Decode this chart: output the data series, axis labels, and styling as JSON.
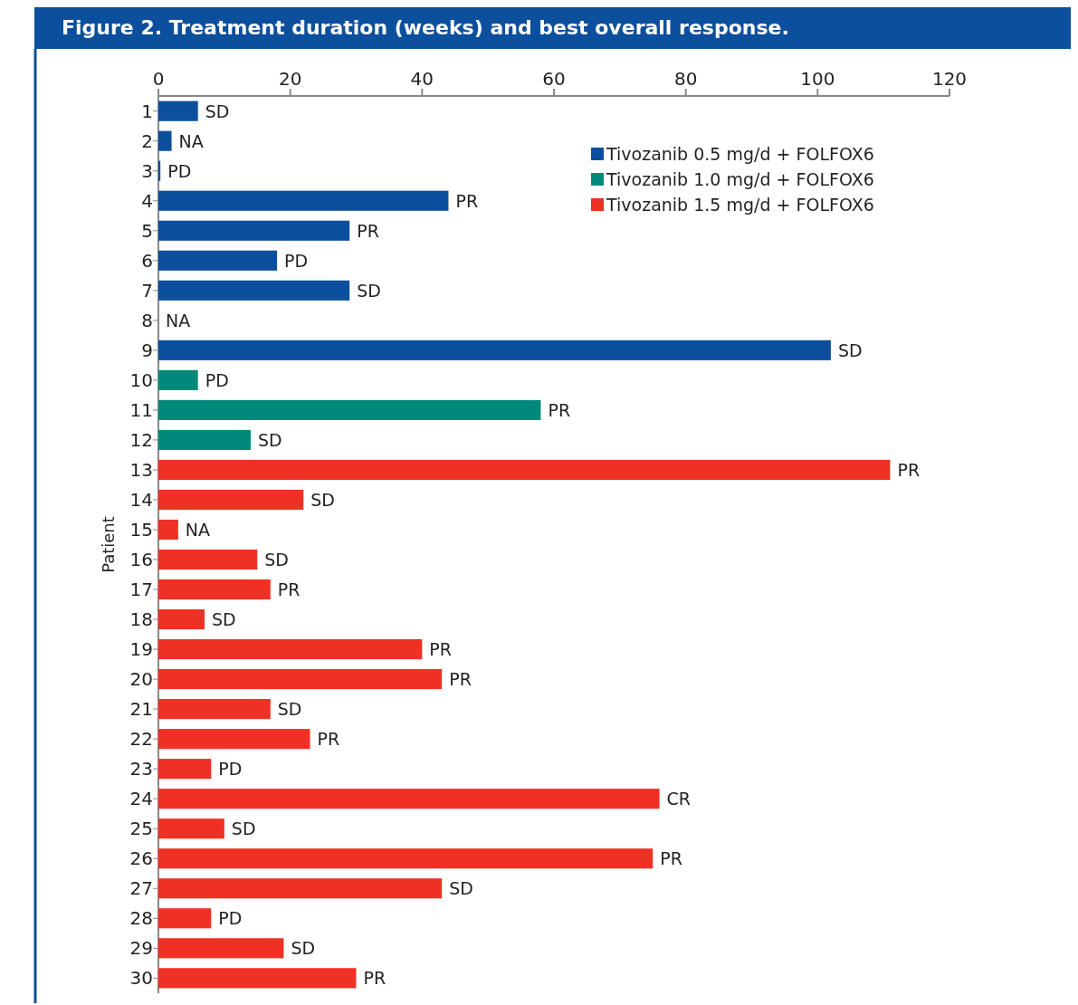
{
  "chart_data": {
    "type": "bar",
    "orientation": "horizontal",
    "title": "Figure 2. Treatment duration (weeks) and best overall response.",
    "ylabel": "Patient",
    "categories": [
      "1",
      "2",
      "3",
      "4",
      "5",
      "6",
      "7",
      "8",
      "9",
      "10",
      "11",
      "12",
      "13",
      "14",
      "15",
      "16",
      "17",
      "18",
      "19",
      "20",
      "21",
      "22",
      "23",
      "24",
      "25",
      "26",
      "27",
      "28",
      "29",
      "30"
    ],
    "xlim": [
      0,
      120
    ],
    "xticks": [
      0,
      20,
      40,
      60,
      80,
      100,
      120
    ],
    "grid": false,
    "legend": "top right",
    "series": [
      {
        "name": "Tivozanib 0.5 mg/d + FOLFOX6",
        "color": "#0c4f9c",
        "values": [
          6,
          2,
          0.3,
          44,
          29,
          18,
          29,
          0,
          102,
          null,
          null,
          null,
          null,
          null,
          null,
          null,
          null,
          null,
          null,
          null,
          null,
          null,
          null,
          null,
          null,
          null,
          null,
          null,
          null,
          null
        ],
        "value_labels": [
          "SD",
          "NA",
          "PD",
          "PR",
          "PR",
          "PD",
          "SD",
          "NA",
          "SD",
          null,
          null,
          null,
          null,
          null,
          null,
          null,
          null,
          null,
          null,
          null,
          null,
          null,
          null,
          null,
          null,
          null,
          null,
          null,
          null,
          null
        ]
      },
      {
        "name": "Tivozanib 1.0 mg/d + FOLFOX6",
        "color": "#00897a",
        "values": [
          null,
          null,
          null,
          null,
          null,
          null,
          null,
          null,
          null,
          6,
          58,
          14,
          null,
          null,
          null,
          null,
          null,
          null,
          null,
          null,
          null,
          null,
          null,
          null,
          null,
          null,
          null,
          null,
          null,
          null
        ],
        "value_labels": [
          null,
          null,
          null,
          null,
          null,
          null,
          null,
          null,
          null,
          "PD",
          "PR",
          "SD",
          null,
          null,
          null,
          null,
          null,
          null,
          null,
          null,
          null,
          null,
          null,
          null,
          null,
          null,
          null,
          null,
          null,
          null
        ]
      },
      {
        "name": "Tivozanib 1.5 mg/d + FOLFOX6",
        "color": "#ee3124",
        "values": [
          null,
          null,
          null,
          null,
          null,
          null,
          null,
          null,
          null,
          null,
          null,
          null,
          111,
          22,
          3,
          15,
          17,
          7,
          40,
          43,
          17,
          23,
          8,
          76,
          10,
          75,
          43,
          8,
          19,
          30
        ],
        "value_labels": [
          null,
          null,
          null,
          null,
          null,
          null,
          null,
          null,
          null,
          null,
          null,
          null,
          "PR",
          "SD",
          "NA",
          "SD",
          "PR",
          "SD",
          "PR",
          "PR",
          "SD",
          "PR",
          "PD",
          "CR",
          "SD",
          "PR",
          "SD",
          "PD",
          "SD",
          "PR"
        ]
      }
    ]
  }
}
